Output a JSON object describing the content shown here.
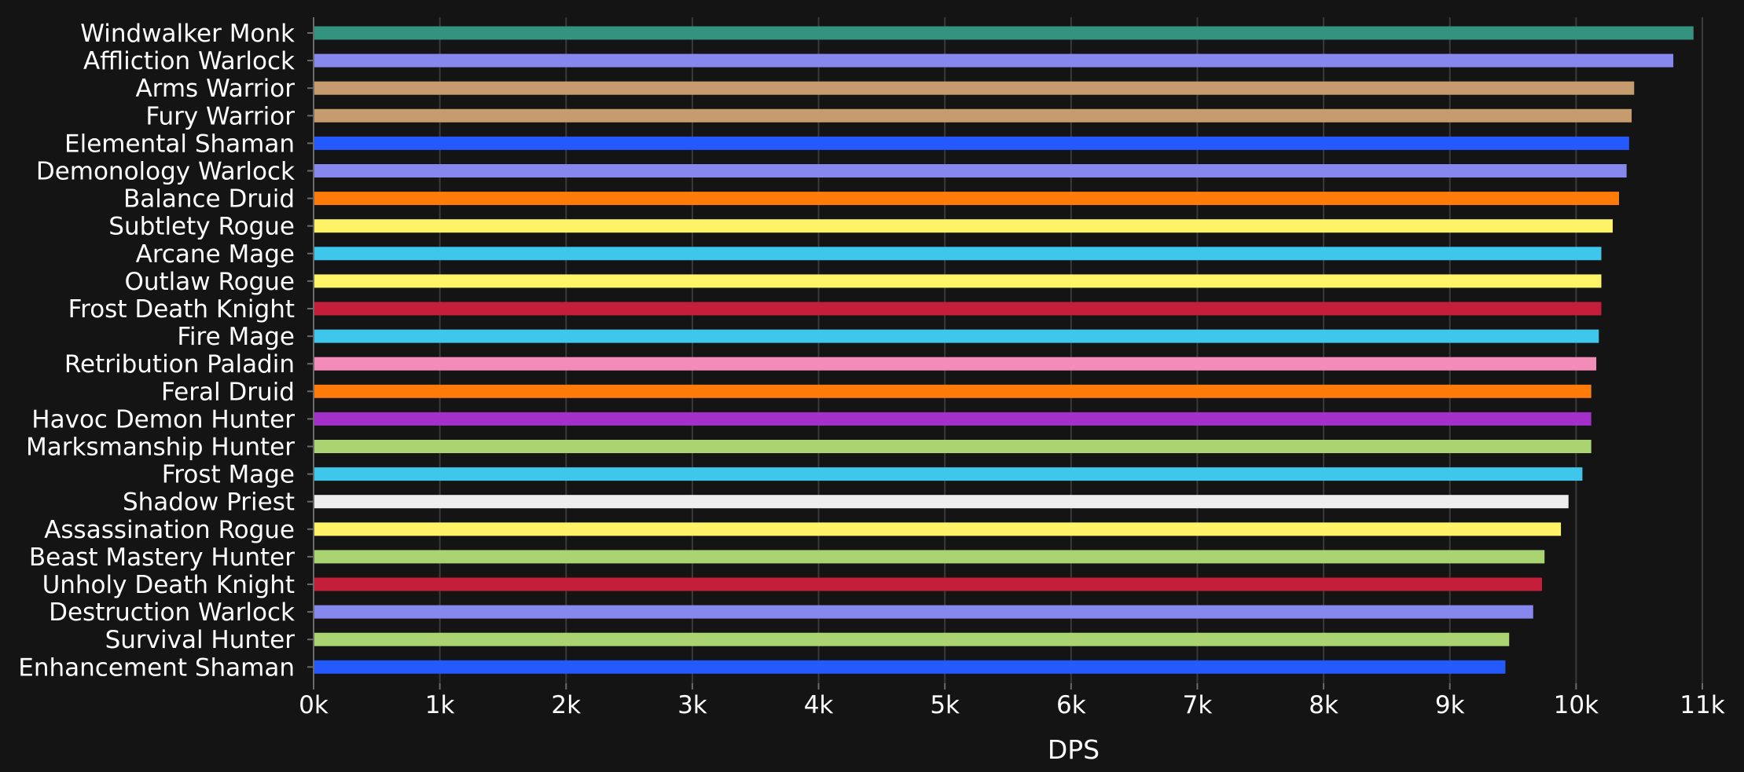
{
  "chart_data": {
    "type": "bar",
    "orientation": "horizontal",
    "title": "",
    "xlabel": "DPS",
    "ylabel": "",
    "xlim": [
      0,
      11000
    ],
    "x_ticks": [
      0,
      1000,
      2000,
      3000,
      4000,
      5000,
      6000,
      7000,
      8000,
      9000,
      10000,
      11000
    ],
    "x_tick_labels": [
      "0k",
      "1k",
      "2k",
      "3k",
      "4k",
      "5k",
      "6k",
      "7k",
      "8k",
      "9k",
      "10k",
      "11k"
    ],
    "grid": "vertical",
    "legend": "none",
    "categories": [
      "Windwalker Monk",
      "Affliction Warlock",
      "Arms Warrior",
      "Fury Warrior",
      "Elemental Shaman",
      "Demonology Warlock",
      "Balance Druid",
      "Subtlety Rogue",
      "Arcane Mage",
      "Outlaw Rogue",
      "Frost Death Knight",
      "Fire Mage",
      "Retribution Paladin",
      "Feral Druid",
      "Havoc Demon Hunter",
      "Marksmanship Hunter",
      "Frost Mage",
      "Shadow Priest",
      "Assassination Rogue",
      "Beast Mastery Hunter",
      "Unholy Death Knight",
      "Destruction Warlock",
      "Survival Hunter",
      "Enhancement Shaman"
    ],
    "values": [
      10930,
      10770,
      10460,
      10440,
      10420,
      10400,
      10340,
      10290,
      10200,
      10200,
      10200,
      10180,
      10160,
      10120,
      10120,
      10120,
      10050,
      9940,
      9880,
      9750,
      9730,
      9660,
      9470,
      9440
    ],
    "colors": [
      "#33937F",
      "#8788EE",
      "#C69B6D",
      "#C69B6D",
      "#2459FF",
      "#8788EE",
      "#FF7C0A",
      "#FFF468",
      "#3FC7EB",
      "#FFF468",
      "#C41E3A",
      "#3FC7EB",
      "#F48CBA",
      "#FF7C0A",
      "#A330C9",
      "#AAD372",
      "#3FC7EB",
      "#EEEEEE",
      "#FFF468",
      "#AAD372",
      "#C41E3A",
      "#8788EE",
      "#AAD372",
      "#2459FF"
    ]
  },
  "colors": {
    "background": "#141414",
    "text": "#ffffff",
    "grid": "#3a3a3a",
    "axis": "#6a6a6a"
  }
}
